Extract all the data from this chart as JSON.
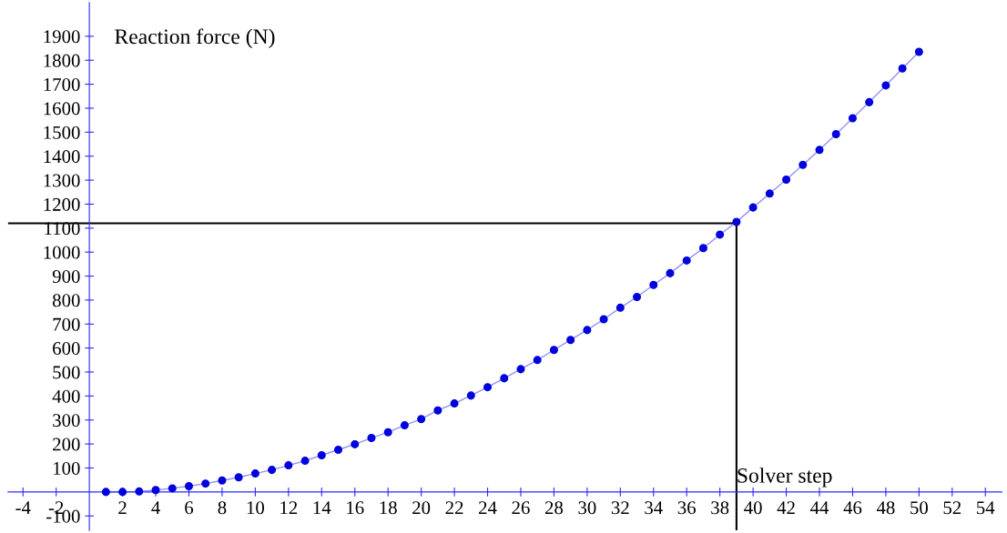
{
  "chart_data": {
    "type": "line",
    "xlabel": "Solver step",
    "ylabel": "Reaction force (N)",
    "x": [
      1,
      2,
      3,
      4,
      5,
      6,
      7,
      8,
      9,
      10,
      11,
      12,
      13,
      14,
      15,
      16,
      17,
      18,
      19,
      20,
      21,
      22,
      23,
      24,
      25,
      26,
      27,
      28,
      29,
      30,
      31,
      32,
      33,
      34,
      35,
      36,
      37,
      38,
      39,
      40,
      41,
      42,
      43,
      44,
      45,
      46,
      47,
      48,
      49,
      50
    ],
    "series": [
      {
        "color": "#0000dd",
        "values": [
          0,
          0,
          2,
          8,
          15,
          24,
          35,
          48,
          61,
          77,
          92,
          111,
          130,
          153,
          176,
          199,
          225,
          249,
          278,
          304,
          340,
          369,
          402,
          437,
          474,
          512,
          550,
          592,
          634,
          675,
          720,
          768,
          813,
          863,
          912,
          965,
          1017,
          1073,
          1126,
          1186,
          1244,
          1302,
          1364,
          1426,
          1492,
          1558,
          1625,
          1695,
          1766,
          1835
        ]
      }
    ],
    "marker": "circle",
    "grid": false,
    "legend": false,
    "xlim": [
      -4.9,
      55
    ],
    "ylim": [
      -160,
      2040
    ],
    "xticks": [
      -4,
      -2,
      2,
      4,
      6,
      8,
      10,
      12,
      14,
      16,
      18,
      20,
      22,
      24,
      26,
      28,
      30,
      32,
      34,
      36,
      38,
      40,
      42,
      44,
      46,
      48,
      50,
      52,
      54
    ],
    "yticks": [
      -100,
      100,
      200,
      300,
      400,
      500,
      600,
      700,
      800,
      900,
      1000,
      1100,
      1200,
      1300,
      1400,
      1500,
      1600,
      1700,
      1800,
      1900
    ],
    "ref_lines": [
      {
        "axis": "y",
        "value": 1120,
        "color": "#000000"
      },
      {
        "axis": "x",
        "value": 39,
        "color": "#000000"
      }
    ]
  }
}
